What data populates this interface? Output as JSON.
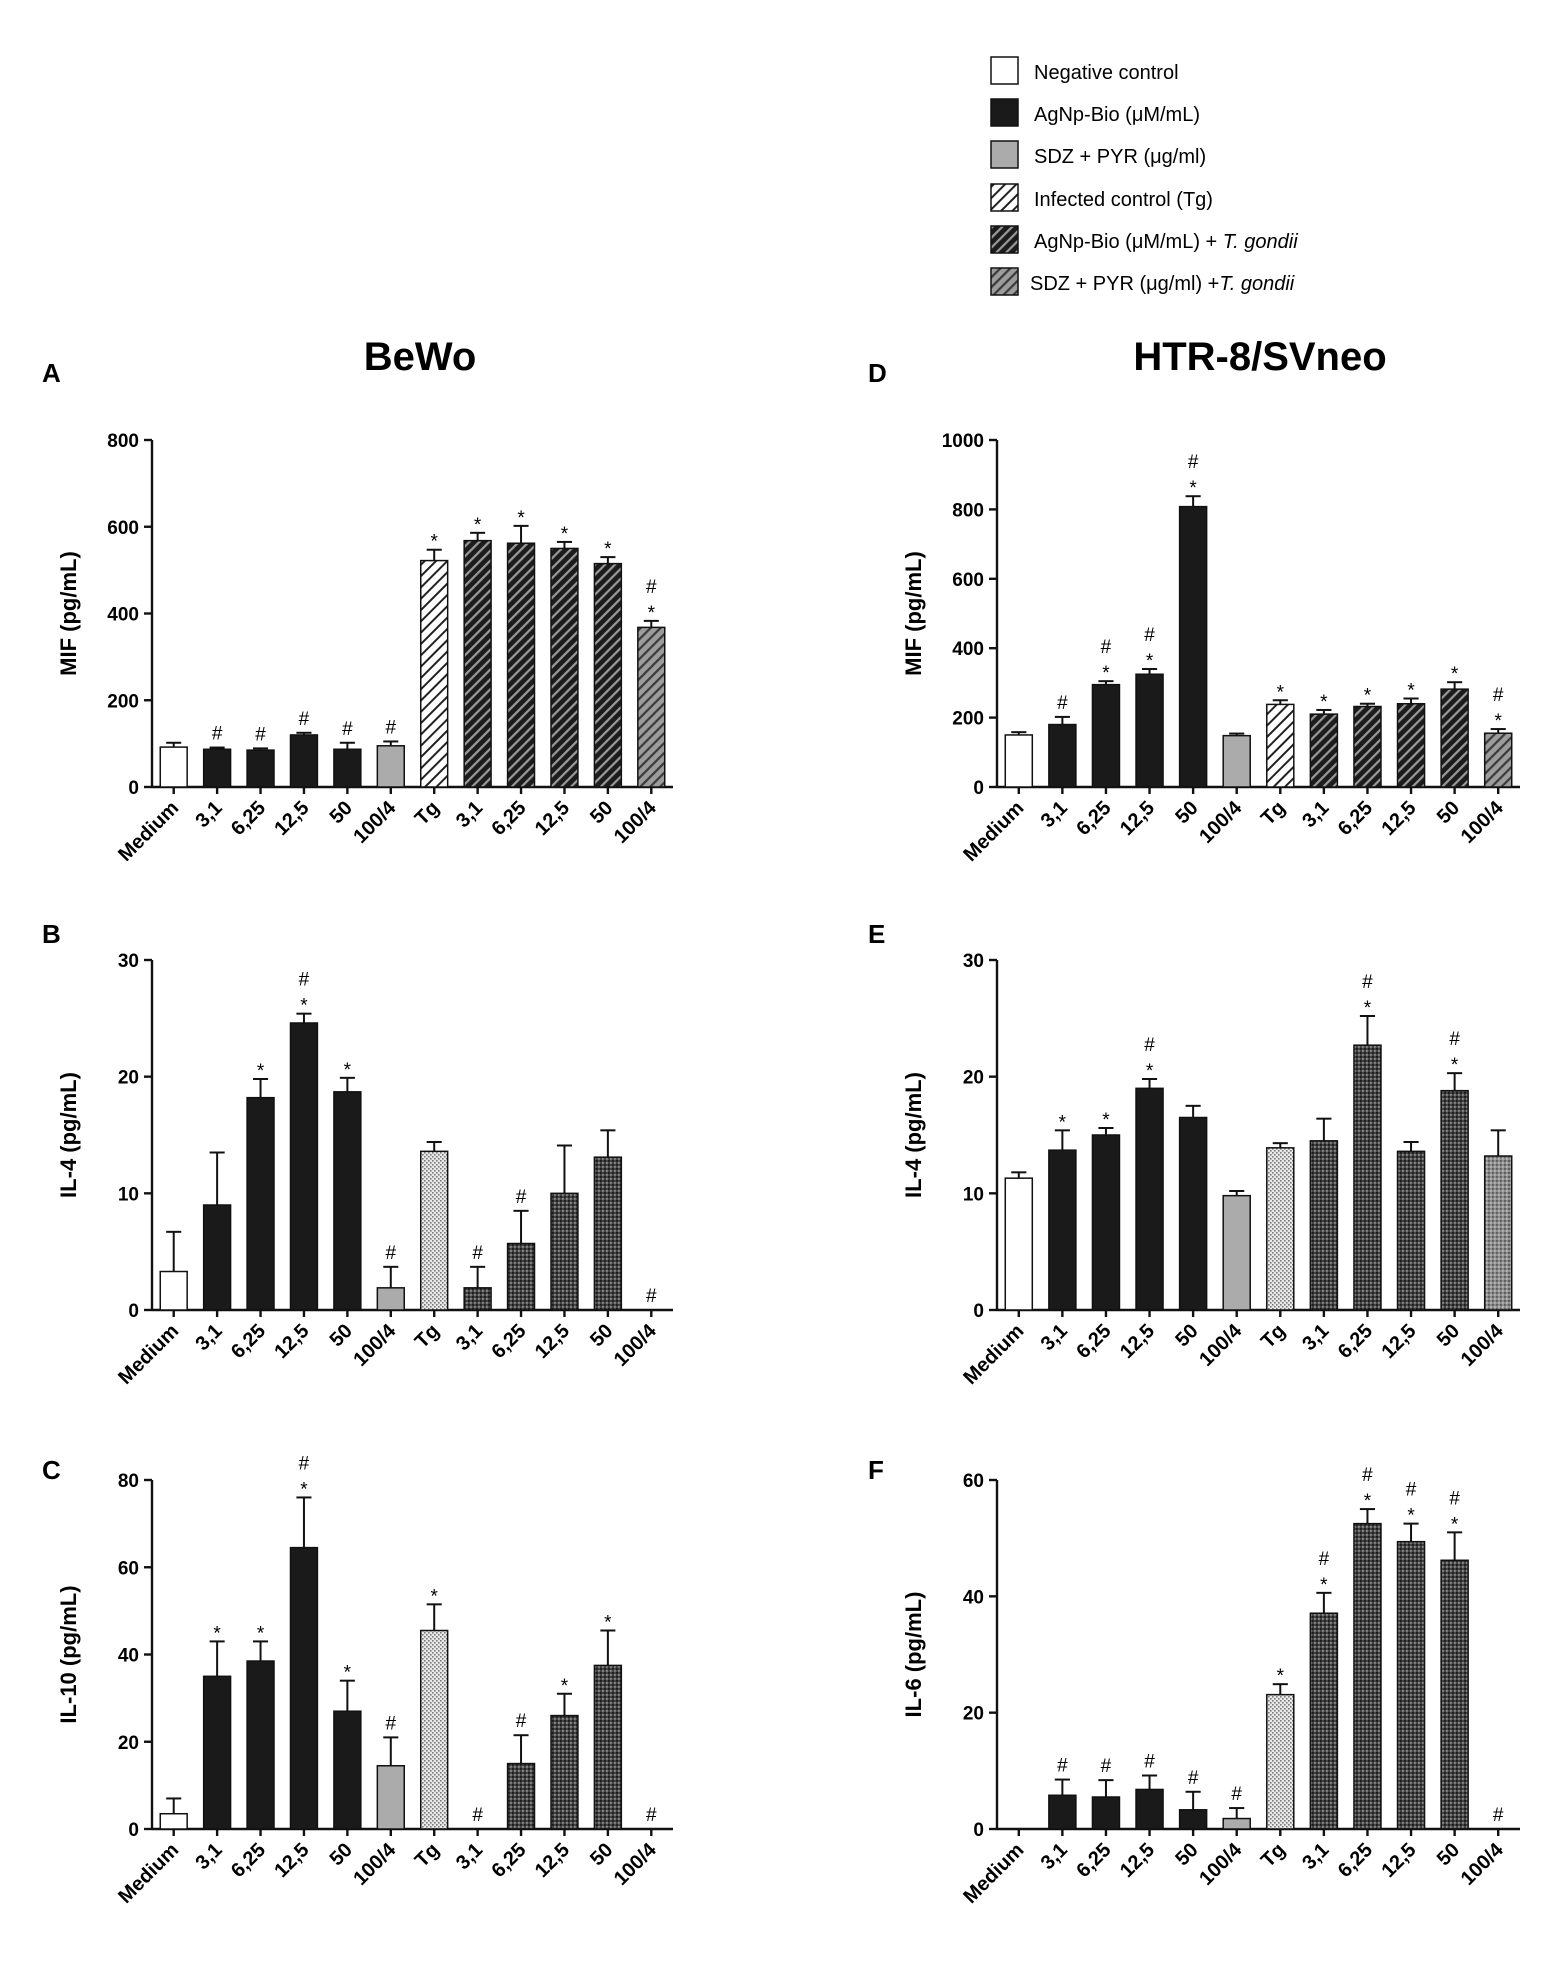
{
  "figure": {
    "titles": {
      "left": "BeWo",
      "right": "HTR-8/SVneo"
    }
  },
  "legend": [
    {
      "label": "Negative control",
      "fill": "white"
    },
    {
      "label": "AgNp-Bio (μM/mL)",
      "fill": "black"
    },
    {
      "label": "SDZ + PYR (μg/ml)",
      "fill": "gray"
    },
    {
      "label": "Infected control (Tg)",
      "fill": "hatchLight"
    },
    {
      "label": "AgNp-Bio (μM/mL) + ",
      "italic": "T. gondii",
      "fill": "hatchDark"
    },
    {
      "label": "SDZ + PYR (μg/ml) +",
      "italic": "T. gondii",
      "fill": "hatchGray"
    }
  ],
  "colors": {
    "black": "#1a1a1a",
    "gray": "#ababab",
    "white": "#ffffff"
  },
  "chart_data": [
    {
      "panel": "A",
      "cell": "BeWo",
      "type": "bar",
      "ylabel": "MIF (pg/mL)",
      "ylim": [
        0,
        800
      ],
      "yticks": [
        0,
        200,
        400,
        600,
        800
      ],
      "categories": [
        "Medium",
        "3,1",
        "6,25",
        "12,5",
        "50",
        "100/4",
        "Tg",
        "3,1",
        "6,25",
        "12,5",
        "50",
        "100/4"
      ],
      "groups": [
        "white",
        "black",
        "black",
        "black",
        "black",
        "gray",
        "hatchLight",
        "hatchDark",
        "hatchDark",
        "hatchDark",
        "hatchDark",
        "hatchGray"
      ],
      "values": [
        92,
        87,
        85,
        120,
        87,
        95,
        522,
        568,
        562,
        550,
        515,
        368
      ],
      "errors": [
        10,
        4,
        4,
        5,
        15,
        10,
        25,
        18,
        40,
        15,
        15,
        15
      ],
      "annotations": [
        "",
        "#",
        "#",
        "#",
        "#",
        "#",
        "*",
        "*",
        "*",
        "*",
        "*",
        "#*"
      ]
    },
    {
      "panel": "B",
      "cell": "BeWo",
      "type": "bar",
      "ylabel": "IL-4 (pg/mL)",
      "ylim": [
        0,
        30
      ],
      "yticks": [
        0,
        10,
        20,
        30
      ],
      "categories": [
        "Medium",
        "3,1",
        "6,25",
        "12,5",
        "50",
        "100/4",
        "Tg",
        "3,1",
        "6,25",
        "12,5",
        "50",
        "100/4"
      ],
      "groups": [
        "white",
        "black",
        "black",
        "black",
        "black",
        "gray",
        "dotLight",
        "dotDark",
        "dotDark",
        "dotDark",
        "dotDark",
        "dotGray"
      ],
      "values": [
        3.3,
        9.0,
        18.2,
        24.6,
        18.7,
        1.9,
        13.6,
        1.9,
        5.7,
        10.0,
        13.1,
        0
      ],
      "errors": [
        3.4,
        4.5,
        1.6,
        0.8,
        1.2,
        1.8,
        0.8,
        1.8,
        2.8,
        4.1,
        2.3,
        0
      ],
      "annotations": [
        "",
        "",
        "*",
        "#*",
        "*",
        "#",
        "",
        "#",
        "#",
        "",
        "",
        "#"
      ]
    },
    {
      "panel": "C",
      "cell": "BeWo",
      "type": "bar",
      "ylabel": "IL-10 (pg/mL)",
      "ylim": [
        0,
        80
      ],
      "yticks": [
        0,
        20,
        40,
        60,
        80
      ],
      "categories": [
        "Medium",
        "3,1",
        "6,25",
        "12,5",
        "50",
        "100/4",
        "Tg",
        "3,1",
        "6,25",
        "12,5",
        "50",
        "100/4"
      ],
      "groups": [
        "white",
        "black",
        "black",
        "black",
        "black",
        "gray",
        "dotLight",
        "dotDark",
        "dotDark",
        "dotDark",
        "dotDark",
        "dotGray"
      ],
      "values": [
        3.5,
        35,
        38.5,
        64.5,
        27,
        14.5,
        45.5,
        0,
        15,
        26,
        37.5,
        0
      ],
      "errors": [
        3.5,
        8,
        4.5,
        11.5,
        7,
        6.5,
        6,
        0,
        6.5,
        5,
        8,
        0
      ],
      "annotations": [
        "",
        "*",
        "*",
        "#*",
        "*",
        "#",
        "*",
        "#",
        "#",
        "*",
        "*",
        "#"
      ]
    },
    {
      "panel": "D",
      "cell": "HTR-8/SVneo",
      "type": "bar",
      "ylabel": "MIF (pg/mL)",
      "ylim": [
        0,
        1000
      ],
      "yticks": [
        0,
        200,
        400,
        600,
        800,
        1000
      ],
      "categories": [
        "Medium",
        "3,1",
        "6,25",
        "12,5",
        "50",
        "100/4",
        "Tg",
        "3,1",
        "6,25",
        "12,5",
        "50",
        "100/4"
      ],
      "groups": [
        "white",
        "black",
        "black",
        "black",
        "black",
        "gray",
        "hatchLight",
        "hatchDark",
        "hatchDark",
        "hatchDark",
        "hatchDark",
        "hatchGray"
      ],
      "values": [
        150,
        180,
        295,
        325,
        808,
        148,
        238,
        210,
        232,
        240,
        282,
        155
      ],
      "errors": [
        8,
        22,
        10,
        15,
        30,
        6,
        12,
        12,
        8,
        15,
        20,
        12
      ],
      "annotations": [
        "",
        "#",
        "#*",
        "#*",
        "#*",
        "",
        "*",
        "*",
        "*",
        "*",
        "*",
        "#*"
      ]
    },
    {
      "panel": "E",
      "cell": "HTR-8/SVneo",
      "type": "bar",
      "ylabel": "IL-4 (pg/mL)",
      "ylim": [
        0,
        30
      ],
      "yticks": [
        0,
        10,
        20,
        30
      ],
      "categories": [
        "Medium",
        "3,1",
        "6,25",
        "12,5",
        "50",
        "100/4",
        "Tg",
        "3,1",
        "6,25",
        "12,5",
        "50",
        "100/4"
      ],
      "groups": [
        "white",
        "black",
        "black",
        "black",
        "black",
        "gray",
        "dotLight",
        "dotDark",
        "dotDark",
        "dotDark",
        "dotDark",
        "dotGray"
      ],
      "values": [
        11.3,
        13.7,
        15.0,
        19.0,
        16.5,
        9.8,
        13.9,
        14.5,
        22.7,
        13.6,
        18.8,
        13.2
      ],
      "errors": [
        0.5,
        1.7,
        0.6,
        0.8,
        1.0,
        0.4,
        0.4,
        1.9,
        2.5,
        0.8,
        1.5,
        2.2
      ],
      "annotations": [
        "",
        "*",
        "*",
        "#*",
        "",
        "",
        "",
        "",
        "#*",
        "",
        "#*",
        ""
      ]
    },
    {
      "panel": "F",
      "cell": "HTR-8/SVneo",
      "type": "bar",
      "ylabel": "IL-6 (pg/mL)",
      "ylim": [
        0,
        60
      ],
      "yticks": [
        0,
        20,
        40,
        60
      ],
      "categories": [
        "Medium",
        "3,1",
        "6,25",
        "12,5",
        "50",
        "100/4",
        "Tg",
        "3,1",
        "6,25",
        "12,5",
        "50",
        "100/4"
      ],
      "groups": [
        "white",
        "black",
        "black",
        "black",
        "black",
        "gray",
        "dotLight",
        "dotDark",
        "dotDark",
        "dotDark",
        "dotDark",
        "dotGray"
      ],
      "values": [
        0,
        5.8,
        5.5,
        6.8,
        3.3,
        1.8,
        23.1,
        37.1,
        52.5,
        49.4,
        46.2,
        0
      ],
      "errors": [
        0,
        2.7,
        2.9,
        2.4,
        3.1,
        1.8,
        1.8,
        3.5,
        2.5,
        3.1,
        4.8,
        0
      ],
      "annotations": [
        "",
        "#",
        "#",
        "#",
        "#",
        "#",
        "*",
        "#*",
        "#*",
        "#*",
        "#*",
        "#"
      ]
    }
  ]
}
